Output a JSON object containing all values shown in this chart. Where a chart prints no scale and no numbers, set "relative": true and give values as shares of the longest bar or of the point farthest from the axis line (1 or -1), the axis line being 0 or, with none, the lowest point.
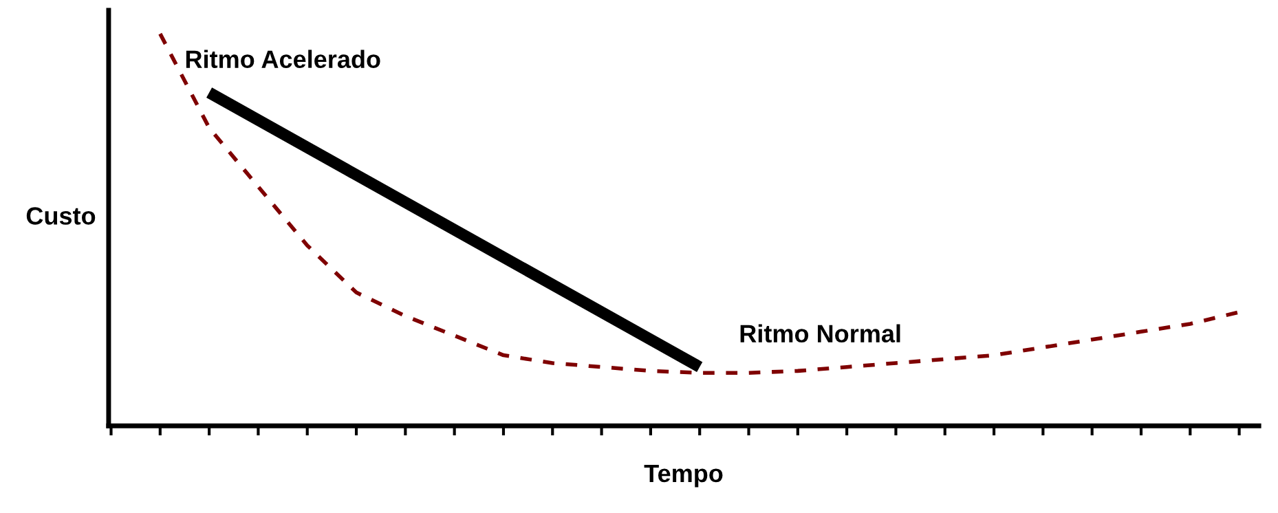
{
  "chart_data": {
    "type": "line",
    "relative": true,
    "xlabel": "Tempo",
    "ylabel": "Custo",
    "tick_labels": false,
    "legend": false,
    "grid": false,
    "marker": "none",
    "categories": [
      null,
      null,
      null,
      null,
      null,
      null,
      null,
      null,
      null,
      null,
      null,
      null,
      null,
      null,
      null,
      null,
      null,
      null,
      null,
      null,
      null,
      null,
      null,
      null
    ],
    "series": [
      {
        "color": "#7f0000",
        "line_style": "dashed",
        "values": [
          null,
          1.0,
          0.76,
          0.61,
          0.46,
          0.34,
          0.28,
          0.23,
          0.18,
          0.16,
          0.15,
          0.14,
          0.135,
          0.135,
          0.14,
          0.15,
          0.16,
          0.17,
          0.18,
          0.2,
          0.22,
          0.24,
          0.26,
          0.29
        ]
      },
      {
        "color": "#000000",
        "line_style": "solid",
        "values": [
          null,
          null,
          0.85,
          null,
          null,
          null,
          null,
          null,
          null,
          null,
          null,
          null,
          0.15,
          null,
          null,
          null,
          null,
          null,
          null,
          null,
          null,
          null,
          null,
          null
        ]
      }
    ],
    "annotations": [
      "Ritmo Acelerado",
      "Ritmo Normal"
    ]
  }
}
